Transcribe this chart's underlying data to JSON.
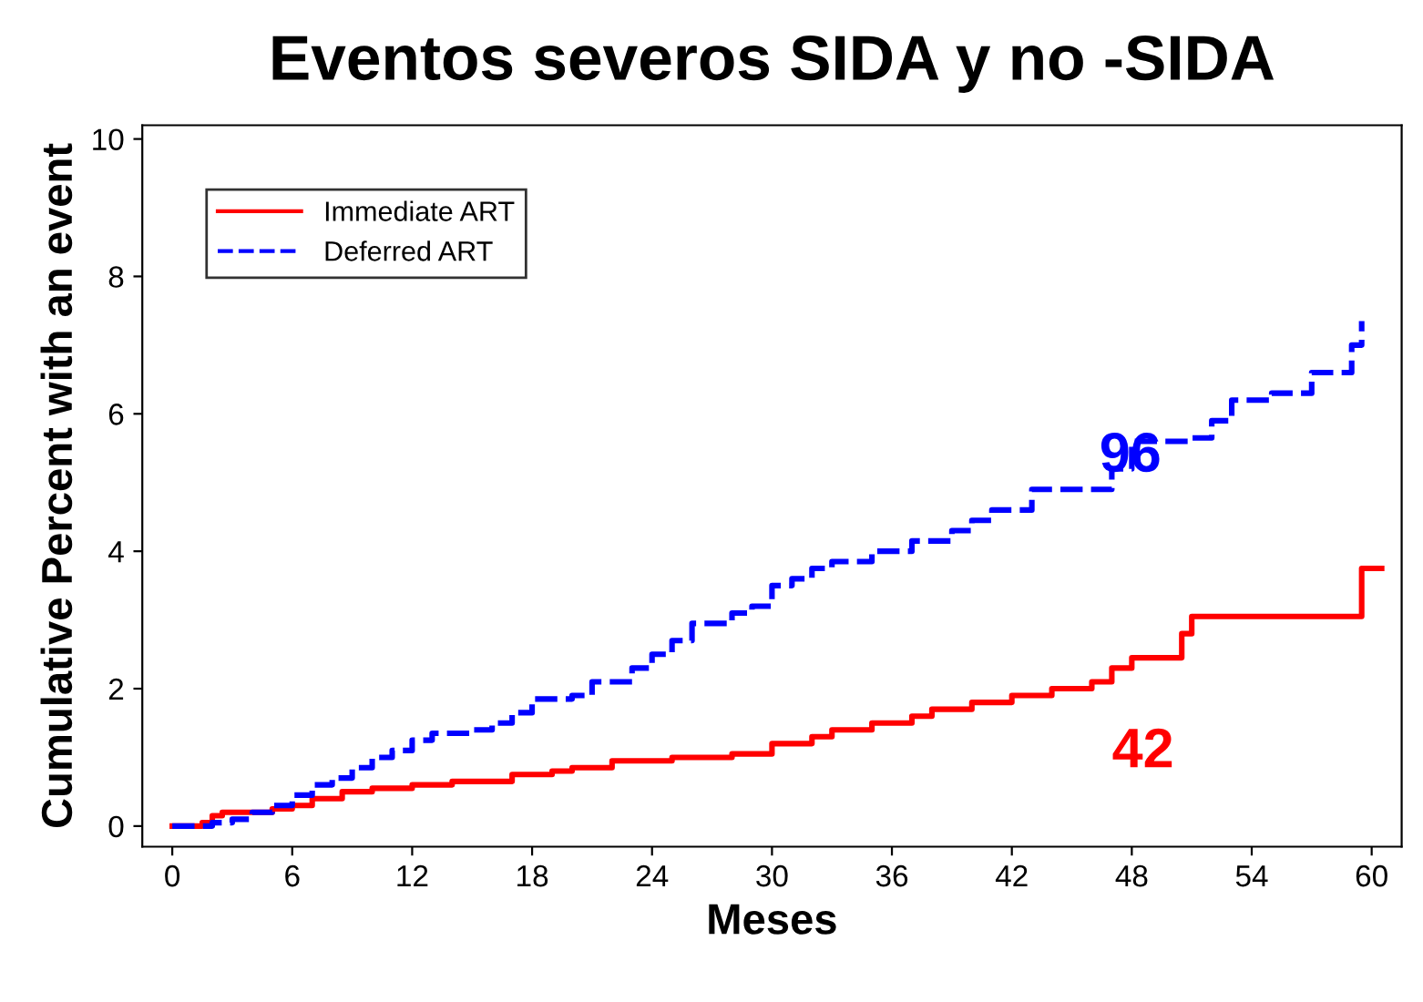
{
  "chart_data": {
    "type": "step",
    "title": "Eventos severos SIDA y no -SIDA",
    "xlabel": "Meses",
    "ylabel": "Cumulative Percent with an event",
    "xlim": [
      -1.5,
      61.5
    ],
    "ylim": [
      -0.3,
      10.2
    ],
    "xticks": [
      0,
      6,
      12,
      18,
      24,
      30,
      36,
      42,
      48,
      54,
      60
    ],
    "yticks": [
      0,
      2,
      4,
      6,
      8,
      10
    ],
    "grid": false,
    "legend": "top left",
    "series": [
      {
        "name": "Immediate ART",
        "color": "#ff0000",
        "line_style": "solid",
        "x": [
          0,
          1.5,
          2,
          2.5,
          5,
          6,
          7,
          8.5,
          10,
          12,
          14,
          17,
          19,
          20,
          22,
          25,
          28,
          30,
          32,
          33,
          35,
          37,
          38,
          40,
          42,
          44,
          46,
          47,
          48,
          50.5,
          51,
          59.5,
          60.5
        ],
        "values": [
          0,
          0.05,
          0.15,
          0.2,
          0.25,
          0.3,
          0.4,
          0.5,
          0.55,
          0.6,
          0.65,
          0.75,
          0.8,
          0.85,
          0.95,
          1.0,
          1.05,
          1.2,
          1.3,
          1.4,
          1.5,
          1.6,
          1.7,
          1.8,
          1.9,
          2.0,
          2.1,
          2.3,
          2.45,
          2.8,
          3.05,
          3.75,
          3.75
        ]
      },
      {
        "name": "Deferred ART",
        "color": "#0000ff",
        "line_style": "dashed",
        "x": [
          0,
          2,
          3,
          4,
          5,
          6,
          7,
          8,
          9,
          10,
          11,
          12,
          13,
          15,
          16,
          17,
          18,
          20,
          21,
          23,
          24,
          25,
          26,
          28,
          29,
          30,
          31,
          32,
          33,
          35,
          37,
          39,
          40,
          41,
          43,
          47,
          48,
          51,
          52,
          53,
          55,
          57,
          59,
          59.5
        ],
        "values": [
          0,
          0.05,
          0.1,
          0.2,
          0.3,
          0.45,
          0.6,
          0.7,
          0.85,
          1.0,
          1.1,
          1.25,
          1.35,
          1.4,
          1.5,
          1.65,
          1.85,
          1.9,
          2.1,
          2.3,
          2.5,
          2.7,
          2.95,
          3.1,
          3.2,
          3.5,
          3.6,
          3.75,
          3.85,
          4.0,
          4.15,
          4.3,
          4.45,
          4.6,
          4.9,
          5.2,
          5.6,
          5.65,
          5.9,
          6.2,
          6.3,
          6.6,
          7.0,
          7.35
        ]
      }
    ],
    "annotations": [
      "42",
      "96"
    ]
  }
}
